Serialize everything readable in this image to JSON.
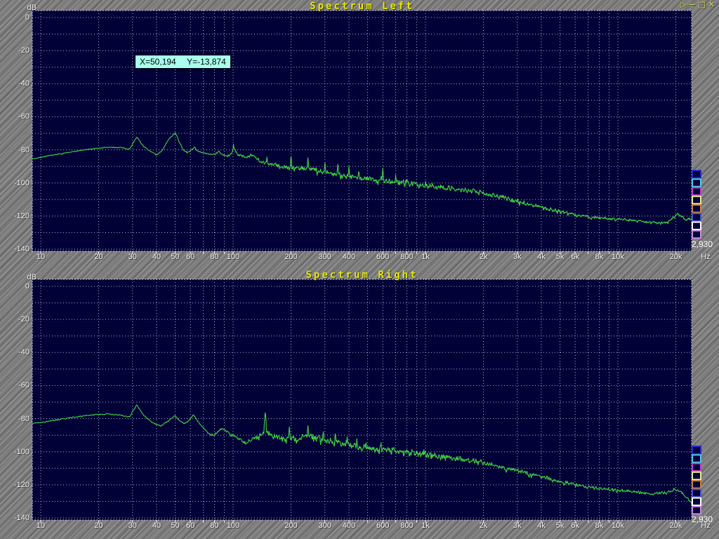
{
  "window": {
    "controls": [
      {
        "name": "run",
        "glyph": "▷"
      },
      {
        "name": "minimize",
        "glyph": "−"
      },
      {
        "name": "maximize",
        "glyph": "□"
      },
      {
        "name": "close",
        "glyph": "✕"
      }
    ]
  },
  "tooltip": {
    "x_text": "X=50,194",
    "y_text": "Y=-13,874"
  },
  "colors": {
    "plot_bg": "#010138",
    "grid": "#c2c2dc",
    "trace": "#3fd43f",
    "label": "#f2f2f2",
    "title": "#e8e800",
    "tooltip_bg": "#a8ffee",
    "swatches": [
      "#2828c8",
      "#50c8e8",
      "#c040c8",
      "#e8e890",
      "#c88040",
      "#4850c8",
      "#ffffff",
      "#c888e0"
    ]
  },
  "chart_data": [
    {
      "type": "line",
      "title": "Spectrum Left",
      "ylabel": "dB",
      "xlabel_unit": "Hz",
      "xscale": "log",
      "xlim": [
        9,
        24500
      ],
      "ylim": [
        -140,
        0
      ],
      "grid": "dotted, 10 dB horizontal steps, log-decade minor verticals",
      "y_tick_labels": [
        "0",
        "-20",
        "-40",
        "-60",
        "-80",
        "-100",
        "-120",
        "-140"
      ],
      "x_tick_labels": [
        [
          "10",
          10
        ],
        [
          "20",
          20
        ],
        [
          "30",
          30
        ],
        [
          "40",
          40
        ],
        [
          "50",
          50
        ],
        [
          "60",
          60
        ],
        [
          "80",
          80
        ],
        [
          "100",
          100
        ],
        [
          "200",
          200
        ],
        [
          "300",
          300
        ],
        [
          "400",
          400
        ],
        [
          "600",
          600
        ],
        [
          "800",
          800
        ],
        [
          "1k",
          1000
        ],
        [
          "2k",
          2000
        ],
        [
          "3k",
          3000
        ],
        [
          "4k",
          4000
        ],
        [
          "5k",
          5000
        ],
        [
          "6k",
          6000
        ],
        [
          "8k",
          8000
        ],
        [
          "10k",
          10000
        ],
        [
          "20k",
          20000
        ]
      ],
      "cursor_readout": "2,930",
      "series": {
        "name": "left-channel-spectrum",
        "color": "#3fd43f",
        "noise_seed": 7,
        "envelope_points": [
          [
            9,
            -85.5
          ],
          [
            11,
            -83.5
          ],
          [
            14,
            -81.5
          ],
          [
            18,
            -79.5
          ],
          [
            22,
            -78.5
          ],
          [
            26,
            -78.6
          ],
          [
            29,
            -79.5
          ],
          [
            31.5,
            -72
          ],
          [
            33.5,
            -76.5
          ],
          [
            36,
            -80
          ],
          [
            40,
            -83
          ],
          [
            43,
            -80
          ],
          [
            46,
            -74
          ],
          [
            50,
            -69.5
          ],
          [
            52,
            -74
          ],
          [
            55,
            -80
          ],
          [
            58,
            -81.5
          ],
          [
            61,
            -80
          ],
          [
            63,
            -78
          ],
          [
            65,
            -80.5
          ],
          [
            68,
            -81.5
          ],
          [
            72,
            -82
          ],
          [
            76,
            -82.5
          ],
          [
            80,
            -82.5
          ],
          [
            84,
            -81
          ],
          [
            88,
            -83
          ],
          [
            93,
            -84
          ],
          [
            98,
            -82
          ],
          [
            101,
            -79
          ],
          [
            104,
            -82
          ],
          [
            110,
            -83.5
          ],
          [
            118,
            -84.5
          ],
          [
            126,
            -83.5
          ],
          [
            134,
            -85.5
          ],
          [
            142,
            -87
          ],
          [
            150,
            -88
          ],
          [
            160,
            -89
          ],
          [
            175,
            -89.5
          ],
          [
            190,
            -90.5
          ],
          [
            210,
            -91
          ],
          [
            230,
            -91
          ],
          [
            250,
            -91.5
          ],
          [
            275,
            -92.5
          ],
          [
            300,
            -93.5
          ],
          [
            340,
            -94.5
          ],
          [
            380,
            -95.5
          ],
          [
            420,
            -96.3
          ],
          [
            460,
            -97
          ],
          [
            500,
            -97.5
          ],
          [
            550,
            -98
          ],
          [
            600,
            -98
          ],
          [
            650,
            -98.7
          ],
          [
            700,
            -99
          ],
          [
            800,
            -100
          ],
          [
            900,
            -100.7
          ],
          [
            1000,
            -101.3
          ],
          [
            1200,
            -102.5
          ],
          [
            1500,
            -103.8
          ],
          [
            1800,
            -105
          ],
          [
            2000,
            -106
          ],
          [
            2500,
            -108.5
          ],
          [
            3000,
            -111
          ],
          [
            3500,
            -113
          ],
          [
            4000,
            -114.5
          ],
          [
            4500,
            -116
          ],
          [
            5000,
            -117
          ],
          [
            6000,
            -119
          ],
          [
            7000,
            -120.3
          ],
          [
            8000,
            -121
          ],
          [
            9000,
            -121.6
          ],
          [
            10000,
            -122
          ],
          [
            12000,
            -122.5
          ],
          [
            14000,
            -123.5
          ],
          [
            16000,
            -124
          ],
          [
            17500,
            -124
          ],
          [
            18500,
            -123.2
          ],
          [
            19500,
            -120
          ],
          [
            20500,
            -118.8
          ],
          [
            21500,
            -120
          ],
          [
            22500,
            -122.3
          ],
          [
            23500,
            -121
          ],
          [
            24500,
            -122
          ]
        ],
        "peaks": [
          [
            100.5,
            -75.5
          ],
          [
            150,
            -83.5
          ],
          [
            200,
            -83
          ],
          [
            245,
            -84
          ],
          [
            300,
            -86.5
          ],
          [
            350,
            -88
          ],
          [
            400,
            -89.5
          ],
          [
            450,
            -91.5
          ],
          [
            500,
            -95
          ],
          [
            600,
            -91
          ],
          [
            700,
            -94.5
          ],
          [
            800,
            -96
          ],
          [
            1000,
            -98
          ],
          [
            1200,
            -100
          ]
        ],
        "noise_amplitude_db": [
          [
            9,
            0.25
          ],
          [
            70,
            0.45
          ],
          [
            110,
            1.1
          ],
          [
            160,
            1.8
          ],
          [
            250,
            2.0
          ],
          [
            500,
            2.2
          ],
          [
            1000,
            2.1
          ],
          [
            2000,
            1.7
          ],
          [
            4000,
            1.3
          ],
          [
            8000,
            1.0
          ],
          [
            24500,
            1.0
          ]
        ]
      }
    },
    {
      "type": "line",
      "title": "Spectrum Right",
      "ylabel": "dB",
      "xlabel_unit": "Hz",
      "xscale": "log",
      "xlim": [
        9,
        24500
      ],
      "ylim": [
        -140,
        0
      ],
      "grid": "dotted, 10 dB horizontal steps, log-decade minor verticals",
      "y_tick_labels": [
        "0",
        "-20",
        "-40",
        "-60",
        "-80",
        "-100",
        "-120",
        "-140"
      ],
      "x_tick_labels": [
        [
          "10",
          10
        ],
        [
          "20",
          20
        ],
        [
          "30",
          30
        ],
        [
          "40",
          40
        ],
        [
          "50",
          50
        ],
        [
          "60",
          60
        ],
        [
          "80",
          80
        ],
        [
          "100",
          100
        ],
        [
          "200",
          200
        ],
        [
          "300",
          300
        ],
        [
          "400",
          400
        ],
        [
          "600",
          600
        ],
        [
          "800",
          800
        ],
        [
          "1k",
          1000
        ],
        [
          "2k",
          2000
        ],
        [
          "3k",
          3000
        ],
        [
          "4k",
          4000
        ],
        [
          "5k",
          5000
        ],
        [
          "6k",
          6000
        ],
        [
          "8k",
          8000
        ],
        [
          "10k",
          10000
        ],
        [
          "20k",
          20000
        ]
      ],
      "cursor_readout": "2,930",
      "series": {
        "name": "right-channel-spectrum",
        "color": "#3fd43f",
        "noise_seed": 12345,
        "envelope_points": [
          [
            9,
            -83
          ],
          [
            11,
            -81.5
          ],
          [
            14,
            -79.5
          ],
          [
            18,
            -77.8
          ],
          [
            22,
            -77.2
          ],
          [
            26,
            -77.8
          ],
          [
            29,
            -79
          ],
          [
            31.5,
            -71.5
          ],
          [
            34,
            -77.5
          ],
          [
            38,
            -82.5
          ],
          [
            42,
            -84.5
          ],
          [
            45,
            -82
          ],
          [
            48,
            -79.5
          ],
          [
            50,
            -78.2
          ],
          [
            53,
            -81.5
          ],
          [
            56,
            -83
          ],
          [
            59,
            -81
          ],
          [
            62,
            -77.5
          ],
          [
            65,
            -81
          ],
          [
            68,
            -84
          ],
          [
            72,
            -87
          ],
          [
            76,
            -89.5
          ],
          [
            80,
            -89.8
          ],
          [
            84,
            -87.5
          ],
          [
            88,
            -86.2
          ],
          [
            92,
            -87.5
          ],
          [
            96,
            -89
          ],
          [
            100,
            -90.5
          ],
          [
            106,
            -92
          ],
          [
            112,
            -93.5
          ],
          [
            118,
            -94.5
          ],
          [
            124,
            -92.5
          ],
          [
            130,
            -91
          ],
          [
            138,
            -90.5
          ],
          [
            147,
            -88
          ],
          [
            156,
            -89.5
          ],
          [
            166,
            -91
          ],
          [
            178,
            -91.5
          ],
          [
            192,
            -92
          ],
          [
            210,
            -92
          ],
          [
            230,
            -91
          ],
          [
            250,
            -89.5
          ],
          [
            270,
            -91.5
          ],
          [
            300,
            -93
          ],
          [
            340,
            -93.8
          ],
          [
            380,
            -95
          ],
          [
            420,
            -96.5
          ],
          [
            460,
            -97.5
          ],
          [
            500,
            -98
          ],
          [
            550,
            -98.5
          ],
          [
            600,
            -98.5
          ],
          [
            650,
            -99
          ],
          [
            700,
            -99.5
          ],
          [
            800,
            -100.3
          ],
          [
            900,
            -101
          ],
          [
            1000,
            -101.8
          ],
          [
            1200,
            -103
          ],
          [
            1500,
            -104.5
          ],
          [
            1800,
            -105.8
          ],
          [
            2000,
            -106.8
          ],
          [
            2500,
            -109
          ],
          [
            3000,
            -111.5
          ],
          [
            3500,
            -113.5
          ],
          [
            4000,
            -115
          ],
          [
            4500,
            -116.8
          ],
          [
            5000,
            -118
          ],
          [
            6000,
            -120
          ],
          [
            7000,
            -121.3
          ],
          [
            8000,
            -122
          ],
          [
            9000,
            -122.8
          ],
          [
            10000,
            -123.3
          ],
          [
            12000,
            -124
          ],
          [
            14000,
            -125
          ],
          [
            16000,
            -125.3
          ],
          [
            17500,
            -125
          ],
          [
            18500,
            -124.3
          ],
          [
            19500,
            -123
          ],
          [
            20500,
            -123.5
          ],
          [
            21500,
            -125
          ],
          [
            22500,
            -127
          ],
          [
            23500,
            -129.5
          ],
          [
            24500,
            -132.5
          ]
        ],
        "peaks": [
          [
            147,
            -75
          ],
          [
            196,
            -84.5
          ],
          [
            245,
            -83.5
          ],
          [
            294,
            -87
          ],
          [
            340,
            -88
          ],
          [
            392,
            -90
          ],
          [
            440,
            -91.5
          ],
          [
            490,
            -93
          ],
          [
            588,
            -94
          ],
          [
            686,
            -96
          ],
          [
            800,
            -97
          ],
          [
            980,
            -98.5
          ],
          [
            1176,
            -100
          ],
          [
            1470,
            -102
          ]
        ],
        "noise_amplitude_db": [
          [
            9,
            0.3
          ],
          [
            70,
            0.5
          ],
          [
            110,
            1.2
          ],
          [
            160,
            1.9
          ],
          [
            250,
            2.2
          ],
          [
            500,
            2.4
          ],
          [
            1000,
            2.2
          ],
          [
            2000,
            1.8
          ],
          [
            4000,
            1.4
          ],
          [
            8000,
            1.1
          ],
          [
            24500,
            1.1
          ]
        ]
      }
    }
  ]
}
